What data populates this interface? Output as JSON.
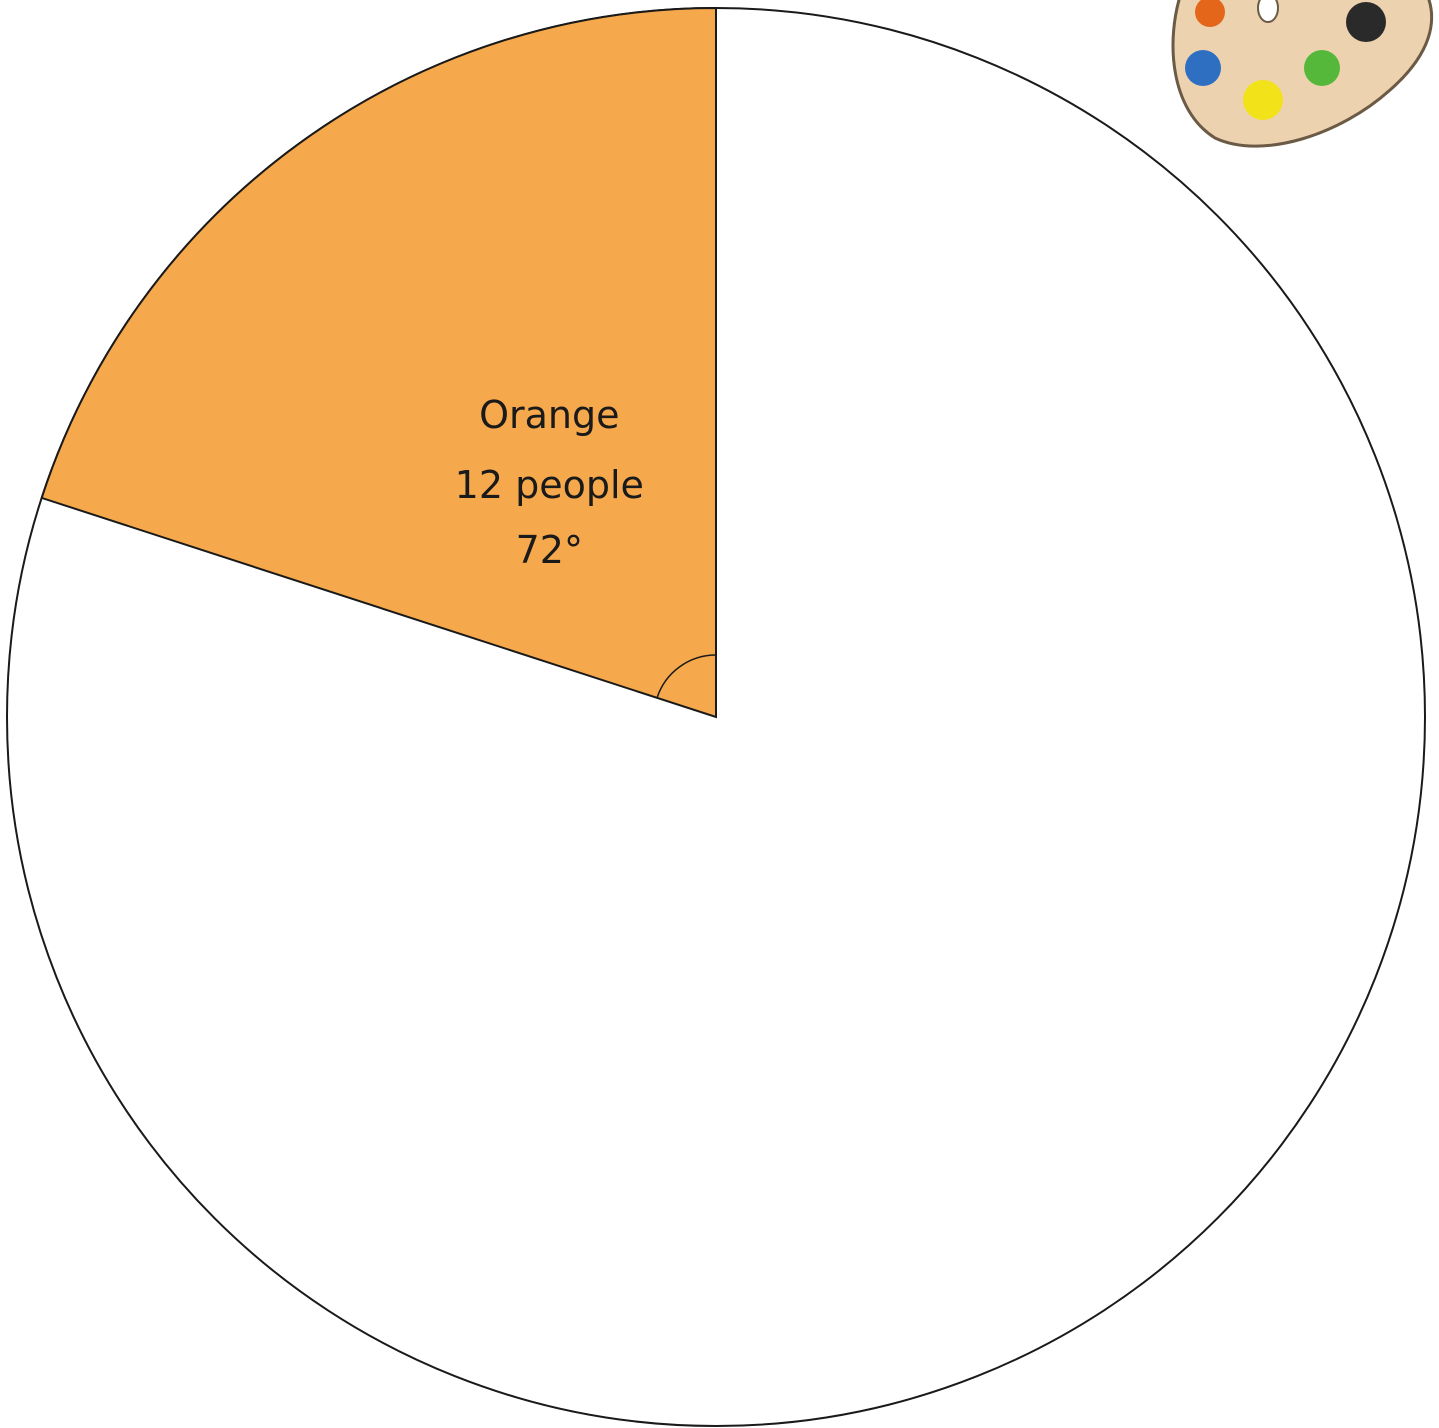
{
  "chart_data": {
    "type": "pie",
    "categories": [
      "Orange"
    ],
    "values": [
      72
    ],
    "value_labels": [
      "72°"
    ],
    "counts": [
      12
    ],
    "count_labels": [
      "12 people"
    ],
    "colors": [
      "#f6a94c"
    ]
  }
}
